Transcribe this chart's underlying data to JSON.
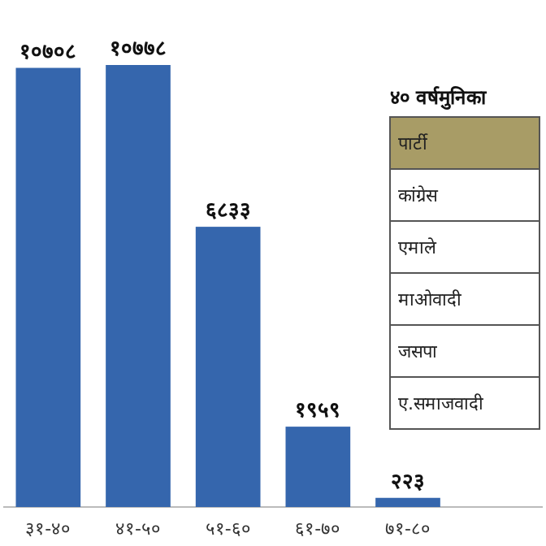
{
  "chart_data": [
    {
      "type": "bar",
      "categories": [
        "३१-४०",
        "४१-५०",
        "५१-६०",
        "६१-७०",
        "७१-८०",
        null
      ],
      "values": [
        10708,
        10778,
        6833,
        1959,
        223,
        null
      ],
      "value_labels": [
        "१०७०८",
        "१०७७८",
        "६८३३",
        "१९५९",
        "२२३",
        null
      ],
      "color": "#3566ad"
    },
    {
      "type": "other",
      "title": "४० वर्षमुनिका",
      "annotations": [
        "पार्टी",
        "कांग्रेस",
        "एमाले",
        "माओवादी",
        "जसपा",
        "ए.समाजवादी"
      ]
    }
  ]
}
